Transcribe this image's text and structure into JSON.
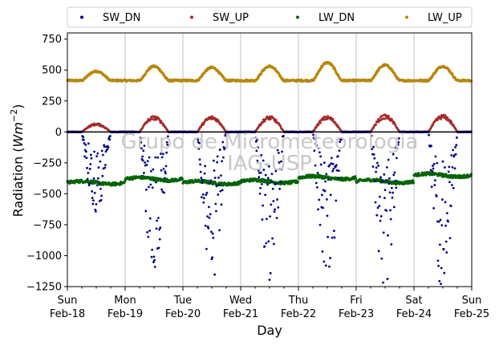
{
  "chart_data": {
    "type": "scatter",
    "xlabel": "Day",
    "ylabel_main": "Radiation (",
    "ylabel_unit": "Wm",
    "ylabel_exp": "−2",
    "ylabel_close": ")",
    "ylim": [
      -1250,
      800
    ],
    "yticks": [
      750,
      500,
      250,
      0,
      -250,
      -500,
      -750,
      -1000,
      -1250
    ],
    "ytick_labels": [
      "750",
      "500",
      "250",
      "0",
      "−250",
      "−500",
      "−750",
      "−1000",
      "−1250"
    ],
    "xlim_days": [
      0,
      7
    ],
    "xticks": [
      {
        "day": "Sun",
        "date": "Feb-18"
      },
      {
        "day": "Mon",
        "date": "Feb-19"
      },
      {
        "day": "Tue",
        "date": "Feb-20"
      },
      {
        "day": "Wed",
        "date": "Feb-21"
      },
      {
        "day": "Thu",
        "date": "Feb-22"
      },
      {
        "day": "Fri",
        "date": "Feb-23"
      },
      {
        "day": "Sat",
        "date": "Feb-24"
      },
      {
        "day": "Sun",
        "date": "Feb-25"
      }
    ],
    "grid": "vertical",
    "legend_position": "top",
    "watermark_line1": "Grupo de Micrometeorologia",
    "watermark_line2": "IAG-USP",
    "series": [
      {
        "name": "SW_DN",
        "color": "#00008b",
        "daily_peak_min": [
          -600,
          -1020,
          -1120,
          -1110,
          -1100,
          -1180,
          -1180
        ]
      },
      {
        "name": "SW_UP",
        "color": "#a52a2a",
        "daily_peak_max": [
          70,
          130,
          130,
          130,
          130,
          140,
          140
        ]
      },
      {
        "name": "LW_DN",
        "color": "#006400",
        "daily_mean": [
          -410,
          -380,
          -410,
          -400,
          -370,
          -400,
          -350
        ]
      },
      {
        "name": "LW_UP",
        "color": "#b8860b",
        "baseline": 415,
        "daily_peak_max": [
          490,
          530,
          520,
          530,
          560,
          540,
          530
        ]
      }
    ]
  }
}
